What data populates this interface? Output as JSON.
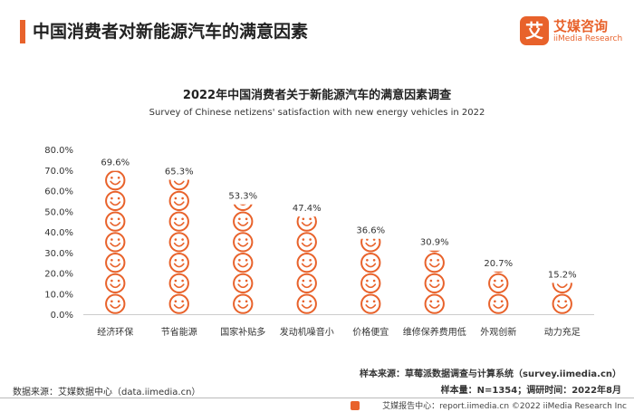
{
  "header": {
    "title": "中国消费者对新能源汽车的满意因素",
    "logo_mark": "艾",
    "logo_cn": "艾媒咨询",
    "logo_en": "iiMedia Research"
  },
  "colors": {
    "accent": "#e8622b",
    "axis": "#cccccc"
  },
  "chart_data": {
    "type": "bar",
    "title": "2022年中国消费者关于新能源汽车的满意因素调查",
    "subtitle": "Survey of Chinese netizens' satisfaction with new energy vehicles in 2022",
    "categories": [
      "经济环保",
      "节省能源",
      "国家补贴多",
      "发动机噪音小",
      "价格便宜",
      "维修保养费用低",
      "外观创新",
      "动力充足"
    ],
    "values": [
      69.6,
      65.3,
      53.3,
      47.4,
      36.6,
      30.9,
      20.7,
      15.2
    ],
    "value_labels": [
      "69.6%",
      "65.3%",
      "53.3%",
      "47.4%",
      "36.6%",
      "30.9%",
      "20.7%",
      "15.2%"
    ],
    "ylim": [
      0,
      80
    ],
    "y_ticks": [
      "0.0%",
      "10.0%",
      "20.0%",
      "30.0%",
      "40.0%",
      "50.0%",
      "60.0%",
      "70.0%",
      "80.0%"
    ],
    "mark_icon": "smiley-face-icon",
    "unit_per_icon": 10
  },
  "notes": {
    "source": "数据来源：艾媒数据中心（data.iimedia.cn）",
    "sample_source": "样本来源：草莓派数据调查与计算系统（survey.iimedia.cn）",
    "sample_size": "样本量：N=1354；调研时间：2022年8月"
  },
  "footer": {
    "text": "艾媒报告中心：report.iimedia.cn  ©2022  iiMedia Research  Inc"
  }
}
